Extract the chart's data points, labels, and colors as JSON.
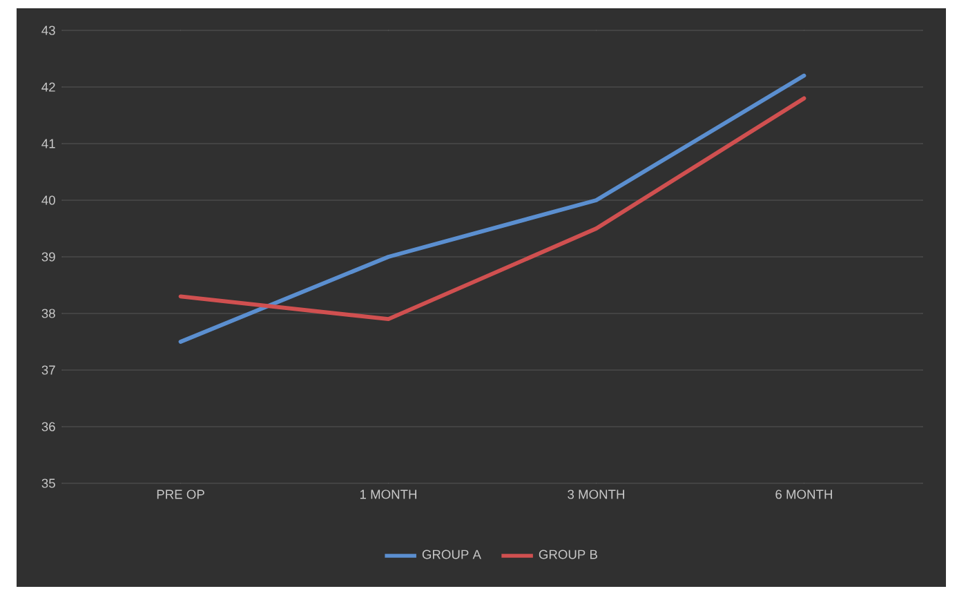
{
  "chart_data": {
    "type": "line",
    "categories": [
      "PRE OP",
      "1 MONTH",
      "3 MONTH",
      "6 MONTH"
    ],
    "series": [
      {
        "name": "GROUP A",
        "color": "#5b8fd0",
        "values": [
          37.5,
          39,
          40,
          42.2
        ]
      },
      {
        "name": "GROUP B",
        "color": "#d05050",
        "values": [
          38.3,
          37.9,
          39.5,
          41.8
        ]
      }
    ],
    "ylim": [
      35,
      43
    ],
    "yticks": [
      35,
      36,
      37,
      38,
      39,
      40,
      41,
      42,
      43
    ],
    "grid": "y",
    "legend": "bottom",
    "marker": "none",
    "line_style": "solid"
  }
}
